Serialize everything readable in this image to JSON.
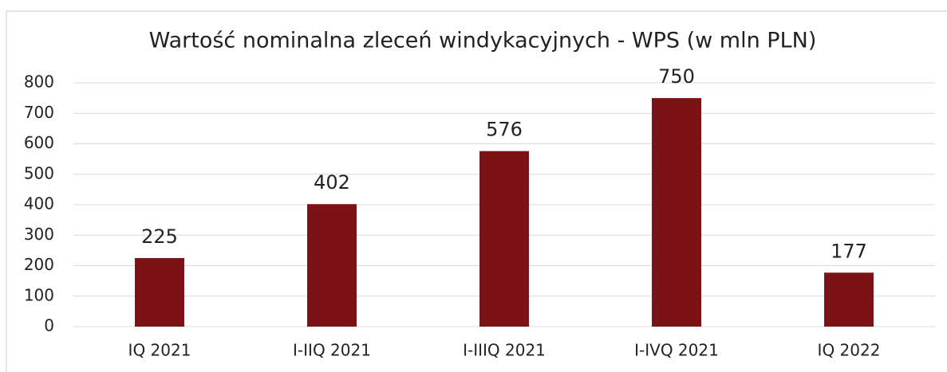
{
  "chart_data": {
    "type": "bar",
    "title": "Wartość nominalna zleceń windykacyjnych - WPS (w mln PLN)",
    "categories": [
      "IQ 2021",
      "I-IIQ 2021",
      "I-IIIQ 2021",
      "I-IVQ 2021",
      "IQ 2022"
    ],
    "values": [
      225,
      402,
      576,
      750,
      177
    ],
    "color": "#7b1216",
    "ylim": [
      0,
      800
    ],
    "yticks": [
      0,
      100,
      200,
      300,
      400,
      500,
      600,
      700,
      800
    ],
    "grid": true
  }
}
